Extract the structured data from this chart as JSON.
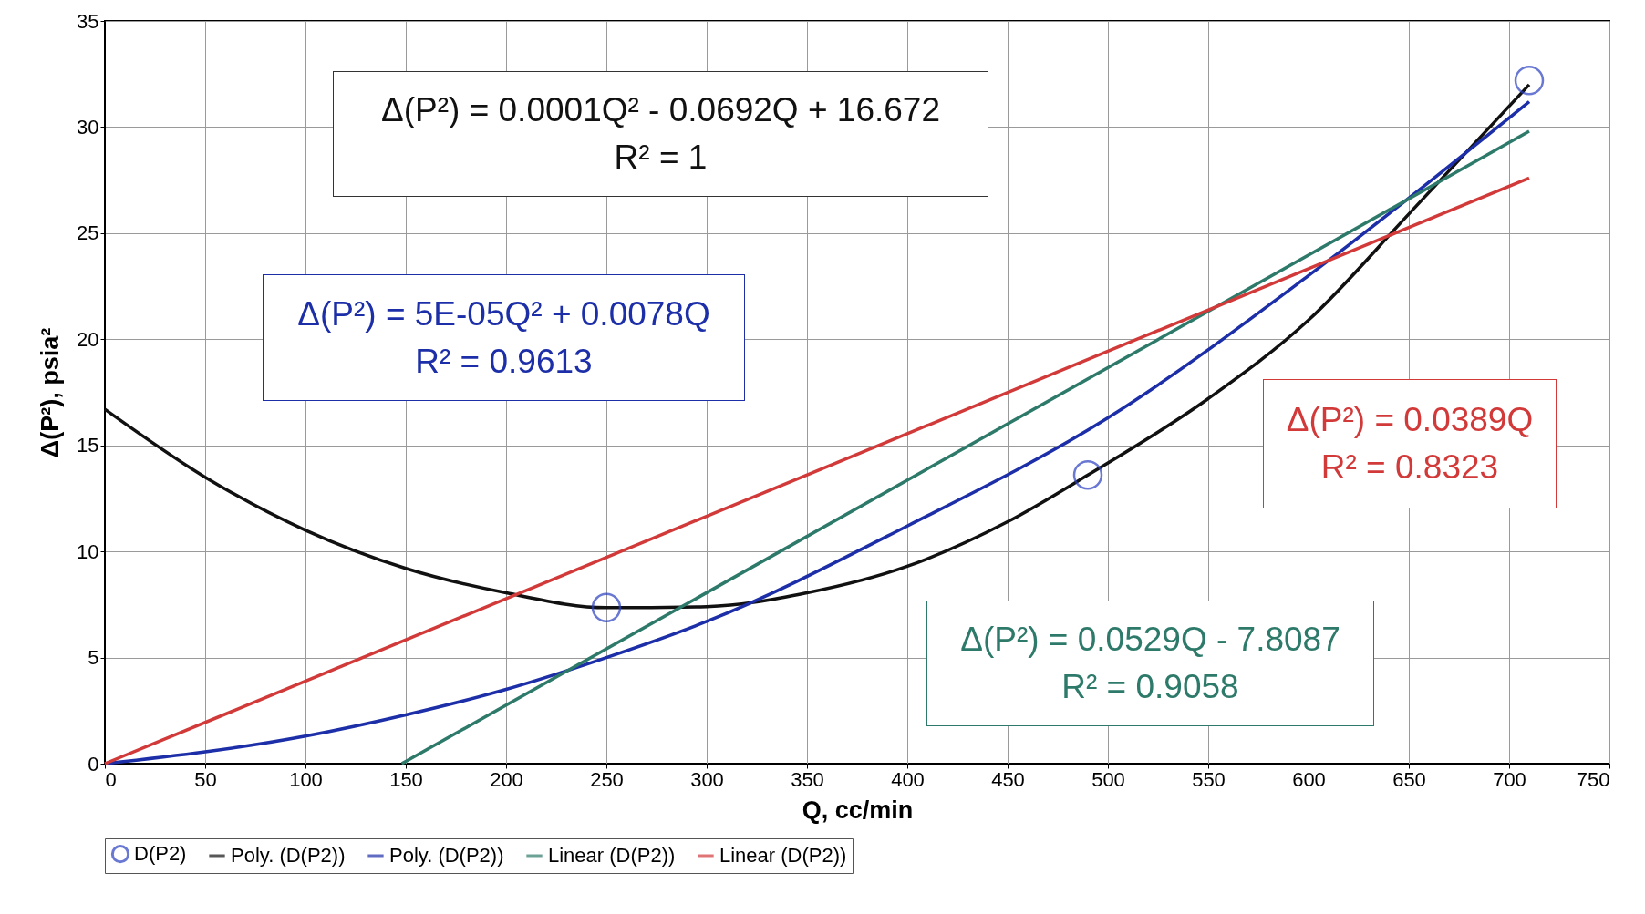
{
  "chart_data": {
    "type": "line",
    "xlabel": "Q, cc/min",
    "ylabel": "Δ(P²), psia²",
    "xlim": [
      0,
      750
    ],
    "xticks": [
      0,
      50,
      100,
      150,
      200,
      250,
      300,
      350,
      400,
      450,
      500,
      550,
      600,
      650,
      700,
      750
    ],
    "ylim": [
      0,
      35
    ],
    "yticks": [
      0,
      5,
      10,
      15,
      20,
      25,
      30,
      35
    ],
    "grid": true,
    "legend": "bottom",
    "series": [
      {
        "name": "D(P2)",
        "type": "scatter",
        "marker": "circle",
        "color": "#2a3fbf",
        "x": [
          250,
          490,
          710
        ],
        "values": [
          7.35,
          13.6,
          32.2
        ]
      },
      {
        "name": "Poly. (D(P2))",
        "type": "line",
        "color": "#111111",
        "x": [
          0,
          50,
          100,
          150,
          200,
          250,
          300,
          350,
          400,
          450,
          490,
          550,
          600,
          650,
          710
        ],
        "values": [
          16.7,
          13.5,
          11.0,
          9.2,
          8.05,
          7.35,
          7.4,
          8.05,
          9.3,
          11.4,
          13.6,
          17.2,
          20.9,
          25.9,
          32.0
        ]
      },
      {
        "name": "Poly. (D(P2))",
        "type": "line",
        "color": "#1c2fa8",
        "x": [
          0,
          100,
          150,
          200,
          250,
          300,
          400,
          500,
          600,
          710
        ],
        "values": [
          0,
          1.3,
          2.3,
          3.5,
          5.0,
          6.7,
          11.2,
          16.3,
          23.0,
          31.2
        ]
      },
      {
        "name": "Linear (D(P2))",
        "type": "line",
        "color": "#2e7a6a",
        "x": [
          148,
          710
        ],
        "values": [
          0,
          29.8
        ]
      },
      {
        "name": "Linear (D(P2))",
        "type": "line",
        "color": "#d23a3a",
        "x": [
          0,
          710
        ],
        "values": [
          0,
          27.6
        ]
      }
    ],
    "annotations": [
      "Δ(P²) = 0.0001Q² - 0.0692Q + 16.672\nR² = 1",
      "Δ(P²) = 5E-05Q² + 0.0078Q\nR² = 0.9613",
      "Δ(P²) = 0.0529Q - 7.8087\nR² = 0.9058",
      "Δ(P²) = 0.0389Q\nR² = 0.8323"
    ]
  }
}
